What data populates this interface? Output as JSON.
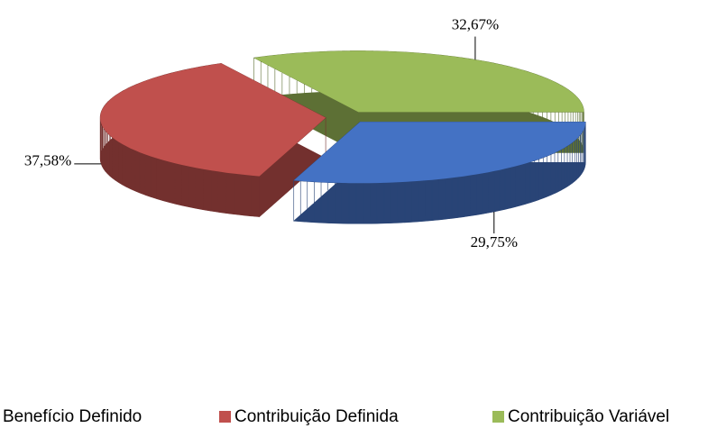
{
  "chart_data": {
    "type": "pie3d",
    "categories": [
      "Benefício Definido",
      "Contribuição Definida",
      "Contribuição Variável"
    ],
    "values": [
      29.75,
      37.58,
      32.67
    ],
    "value_labels": [
      "29,75%",
      "37,58%",
      "32,67%"
    ],
    "colors": [
      "#4472c4",
      "#c0504d",
      "#9bbb59"
    ],
    "legend": "bottom"
  }
}
